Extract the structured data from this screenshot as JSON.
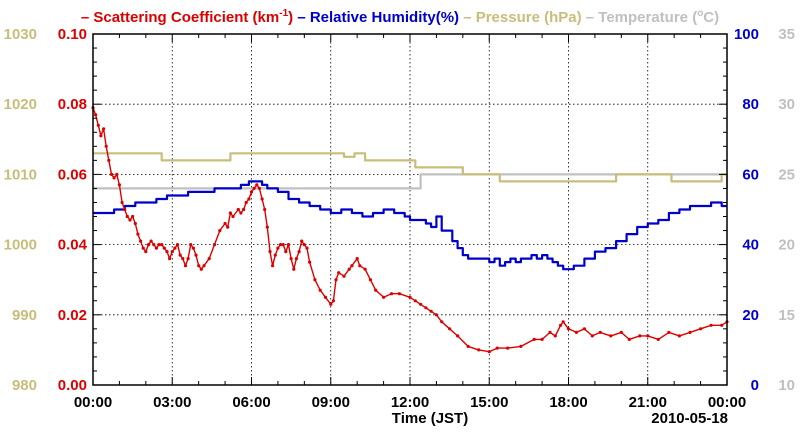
{
  "chart_data": {
    "type": "line",
    "legend": {
      "items": [
        {
          "name": "Scattering Coefficient",
          "unit_prefix": "(km",
          "unit_sup": "-1",
          "unit_suffix": ")",
          "color": "#dd0000",
          "dash": "–"
        },
        {
          "name": "Relative Humidity(%)",
          "color": "#0000cc",
          "dash": "–"
        },
        {
          "name": "Pressure (hPa)",
          "color": "#c8bd7a",
          "dash": "–"
        },
        {
          "name": "Temperature (",
          "unit_sup": "o",
          "unit_suffix": "C)",
          "color": "#c0c0c0",
          "dash": "–"
        }
      ]
    },
    "xlabel": "Time (JST)",
    "date": "2010-05-18",
    "x_range_hours": [
      0,
      24
    ],
    "x_ticks": [
      "00:00",
      "03:00",
      "06:00",
      "09:00",
      "12:00",
      "15:00",
      "18:00",
      "21:00",
      "00:00"
    ],
    "axes": {
      "pressure": {
        "range": [
          980,
          1030
        ],
        "ticks": [
          "980",
          "990",
          "1000",
          "1010",
          "1020",
          "1030"
        ],
        "color": "#c8bd7a"
      },
      "scattering": {
        "range": [
          0,
          0.1
        ],
        "ticks": [
          "0.00",
          "0.02",
          "0.04",
          "0.06",
          "0.08",
          "0.10"
        ],
        "color": "#dd0000"
      },
      "humidity": {
        "range": [
          0,
          100
        ],
        "ticks": [
          "0",
          "20",
          "40",
          "60",
          "80",
          "100"
        ],
        "color": "#0000cc"
      },
      "temperature": {
        "range": [
          10,
          35
        ],
        "ticks": [
          "10",
          "15",
          "20",
          "25",
          "30",
          "35"
        ],
        "color": "#c0c0c0"
      }
    },
    "series": [
      {
        "name": "Scattering Coefficient",
        "axis": "scattering",
        "color": "#dd0000",
        "markers": true,
        "points": [
          [
            0,
            0.079
          ],
          [
            0.1,
            0.077
          ],
          [
            0.2,
            0.074
          ],
          [
            0.3,
            0.071
          ],
          [
            0.4,
            0.073
          ],
          [
            0.5,
            0.068
          ],
          [
            0.6,
            0.064
          ],
          [
            0.7,
            0.06
          ],
          [
            0.8,
            0.059
          ],
          [
            0.9,
            0.06
          ],
          [
            1.0,
            0.057
          ],
          [
            1.1,
            0.052
          ],
          [
            1.2,
            0.05
          ],
          [
            1.3,
            0.048
          ],
          [
            1.4,
            0.047
          ],
          [
            1.5,
            0.048
          ],
          [
            1.6,
            0.046
          ],
          [
            1.7,
            0.043
          ],
          [
            1.8,
            0.041
          ],
          [
            1.9,
            0.039
          ],
          [
            2.0,
            0.038
          ],
          [
            2.1,
            0.04
          ],
          [
            2.2,
            0.041
          ],
          [
            2.3,
            0.04
          ],
          [
            2.4,
            0.039
          ],
          [
            2.5,
            0.04
          ],
          [
            2.6,
            0.04
          ],
          [
            2.7,
            0.039
          ],
          [
            2.8,
            0.038
          ],
          [
            2.9,
            0.036
          ],
          [
            3.0,
            0.038
          ],
          [
            3.1,
            0.039
          ],
          [
            3.2,
            0.04
          ],
          [
            3.3,
            0.037
          ],
          [
            3.4,
            0.036
          ],
          [
            3.5,
            0.034
          ],
          [
            3.6,
            0.036
          ],
          [
            3.7,
            0.04
          ],
          [
            3.8,
            0.039
          ],
          [
            3.9,
            0.037
          ],
          [
            4.0,
            0.034
          ],
          [
            4.1,
            0.033
          ],
          [
            4.2,
            0.034
          ],
          [
            4.4,
            0.036
          ],
          [
            4.6,
            0.04
          ],
          [
            4.8,
            0.044
          ],
          [
            5.0,
            0.046
          ],
          [
            5.1,
            0.045
          ],
          [
            5.2,
            0.049
          ],
          [
            5.3,
            0.048
          ],
          [
            5.5,
            0.05
          ],
          [
            5.6,
            0.049
          ],
          [
            5.7,
            0.05
          ],
          [
            5.8,
            0.052
          ],
          [
            5.9,
            0.053
          ],
          [
            6.0,
            0.055
          ],
          [
            6.1,
            0.056
          ],
          [
            6.2,
            0.057
          ],
          [
            6.3,
            0.056
          ],
          [
            6.4,
            0.053
          ],
          [
            6.5,
            0.05
          ],
          [
            6.6,
            0.045
          ],
          [
            6.7,
            0.038
          ],
          [
            6.8,
            0.034
          ],
          [
            6.9,
            0.037
          ],
          [
            7.0,
            0.039
          ],
          [
            7.1,
            0.04
          ],
          [
            7.2,
            0.04
          ],
          [
            7.3,
            0.038
          ],
          [
            7.4,
            0.04
          ],
          [
            7.5,
            0.036
          ],
          [
            7.6,
            0.033
          ],
          [
            7.7,
            0.036
          ],
          [
            7.8,
            0.038
          ],
          [
            7.9,
            0.041
          ],
          [
            8.0,
            0.04
          ],
          [
            8.1,
            0.039
          ],
          [
            8.2,
            0.035
          ],
          [
            8.4,
            0.03
          ],
          [
            8.6,
            0.027
          ],
          [
            8.8,
            0.025
          ],
          [
            9.0,
            0.023
          ],
          [
            9.1,
            0.024
          ],
          [
            9.2,
            0.03
          ],
          [
            9.3,
            0.032
          ],
          [
            9.5,
            0.031
          ],
          [
            9.7,
            0.033
          ],
          [
            9.8,
            0.034
          ],
          [
            10.0,
            0.036
          ],
          [
            10.1,
            0.034
          ],
          [
            10.3,
            0.033
          ],
          [
            10.5,
            0.03
          ],
          [
            10.7,
            0.027
          ],
          [
            11.0,
            0.025
          ],
          [
            11.3,
            0.026
          ],
          [
            11.6,
            0.026
          ],
          [
            12.0,
            0.025
          ],
          [
            12.2,
            0.024
          ],
          [
            12.4,
            0.023
          ],
          [
            12.6,
            0.022
          ],
          [
            12.8,
            0.021
          ],
          [
            13.0,
            0.02
          ],
          [
            13.2,
            0.018
          ],
          [
            13.5,
            0.016
          ],
          [
            13.8,
            0.014
          ],
          [
            14.2,
            0.011
          ],
          [
            14.6,
            0.01
          ],
          [
            15.0,
            0.0095
          ],
          [
            15.3,
            0.0105
          ],
          [
            15.7,
            0.0105
          ],
          [
            16.2,
            0.011
          ],
          [
            16.7,
            0.013
          ],
          [
            17.0,
            0.013
          ],
          [
            17.3,
            0.015
          ],
          [
            17.5,
            0.014
          ],
          [
            17.7,
            0.017
          ],
          [
            17.8,
            0.018
          ],
          [
            18.0,
            0.016
          ],
          [
            18.3,
            0.015
          ],
          [
            18.6,
            0.016
          ],
          [
            18.9,
            0.014
          ],
          [
            19.2,
            0.015
          ],
          [
            19.6,
            0.014
          ],
          [
            20.0,
            0.015
          ],
          [
            20.3,
            0.013
          ],
          [
            20.7,
            0.014
          ],
          [
            21.0,
            0.014
          ],
          [
            21.4,
            0.013
          ],
          [
            21.8,
            0.015
          ],
          [
            22.2,
            0.014
          ],
          [
            22.6,
            0.015
          ],
          [
            23.0,
            0.016
          ],
          [
            23.4,
            0.017
          ],
          [
            23.8,
            0.017
          ],
          [
            24.0,
            0.018
          ]
        ]
      },
      {
        "name": "Relative Humidity(%)",
        "axis": "humidity",
        "color": "#0000cc",
        "markers": false,
        "step": true,
        "points": [
          [
            0,
            49
          ],
          [
            0.8,
            50
          ],
          [
            1.2,
            51
          ],
          [
            1.6,
            52
          ],
          [
            2.2,
            52
          ],
          [
            2.4,
            53
          ],
          [
            2.8,
            54
          ],
          [
            3.2,
            54
          ],
          [
            3.6,
            55
          ],
          [
            4.2,
            55
          ],
          [
            4.6,
            56
          ],
          [
            5.2,
            56
          ],
          [
            5.6,
            57
          ],
          [
            5.9,
            58
          ],
          [
            6.2,
            58
          ],
          [
            6.4,
            57
          ],
          [
            6.6,
            56
          ],
          [
            7.0,
            55
          ],
          [
            7.4,
            53
          ],
          [
            7.8,
            52
          ],
          [
            8.2,
            51
          ],
          [
            8.6,
            50
          ],
          [
            9.0,
            49
          ],
          [
            9.4,
            50
          ],
          [
            9.8,
            49
          ],
          [
            10.2,
            48
          ],
          [
            10.6,
            49
          ],
          [
            11.0,
            50
          ],
          [
            11.4,
            49
          ],
          [
            11.8,
            48
          ],
          [
            12.0,
            47
          ],
          [
            12.2,
            47
          ],
          [
            12.6,
            46
          ],
          [
            12.8,
            45
          ],
          [
            13.0,
            48
          ],
          [
            13.2,
            44
          ],
          [
            13.6,
            41
          ],
          [
            13.8,
            39
          ],
          [
            14.0,
            37
          ],
          [
            14.2,
            36
          ],
          [
            14.6,
            36
          ],
          [
            15.0,
            35
          ],
          [
            15.2,
            36
          ],
          [
            15.4,
            34
          ],
          [
            15.6,
            35
          ],
          [
            15.8,
            36
          ],
          [
            16.0,
            35
          ],
          [
            16.2,
            36
          ],
          [
            16.6,
            37
          ],
          [
            16.8,
            36
          ],
          [
            17.0,
            37
          ],
          [
            17.2,
            36
          ],
          [
            17.4,
            35
          ],
          [
            17.6,
            34
          ],
          [
            17.8,
            33
          ],
          [
            18.2,
            34
          ],
          [
            18.6,
            36
          ],
          [
            19.0,
            38
          ],
          [
            19.4,
            39
          ],
          [
            19.8,
            41
          ],
          [
            20.2,
            43
          ],
          [
            20.6,
            45
          ],
          [
            21.0,
            46
          ],
          [
            21.4,
            47
          ],
          [
            21.8,
            49
          ],
          [
            22.2,
            50
          ],
          [
            22.6,
            51
          ],
          [
            23.0,
            51
          ],
          [
            23.4,
            52
          ],
          [
            23.8,
            51
          ],
          [
            24.0,
            51
          ]
        ]
      },
      {
        "name": "Pressure (hPa)",
        "axis": "pressure",
        "color": "#c8bd7a",
        "markers": false,
        "step": true,
        "points": [
          [
            0,
            1013
          ],
          [
            2.6,
            1012
          ],
          [
            5.2,
            1013
          ],
          [
            9.5,
            1012.5
          ],
          [
            9.9,
            1013
          ],
          [
            10.3,
            1012
          ],
          [
            12.0,
            1012
          ],
          [
            12.2,
            1011
          ],
          [
            14.0,
            1010
          ],
          [
            15.4,
            1009
          ],
          [
            19.8,
            1010
          ],
          [
            21.7,
            1010
          ],
          [
            21.9,
            1009
          ],
          [
            23.8,
            1010
          ],
          [
            24.0,
            1010
          ]
        ]
      },
      {
        "name": "Temperature (C)",
        "axis": "temperature",
        "color": "#c0c0c0",
        "markers": false,
        "step": true,
        "points": [
          [
            0,
            24
          ],
          [
            3.2,
            24
          ],
          [
            3.4,
            24
          ],
          [
            12.2,
            24
          ],
          [
            12.4,
            25
          ],
          [
            23.6,
            25
          ],
          [
            24.0,
            24
          ]
        ]
      }
    ]
  }
}
